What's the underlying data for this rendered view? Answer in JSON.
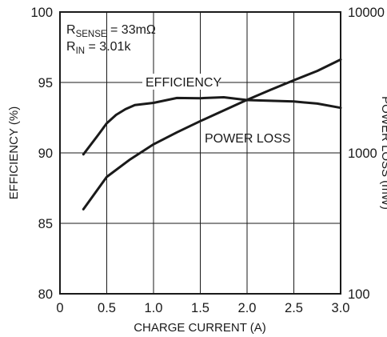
{
  "chart_data": {
    "type": "line",
    "title": "",
    "xlabel": "CHARGE CURRENT (A)",
    "ylabel": "EFFICIENCY (%)",
    "y2label": "POWER LOSS (mW)",
    "xlim": [
      0,
      3.0
    ],
    "ylim": [
      80,
      100
    ],
    "y2lim": [
      100,
      10000
    ],
    "y2scale": "log",
    "grid": true,
    "x_ticks": [
      "0",
      "0.5",
      "1.0",
      "1.5",
      "2.0",
      "2.5",
      "3.0"
    ],
    "y_ticks": [
      "80",
      "85",
      "90",
      "95",
      "100"
    ],
    "y2_ticks": [
      "100",
      "1000",
      "10000"
    ],
    "annotations": {
      "rsense_main": "R",
      "rsense_sub": "SENSE",
      "rsense_value": " = 33mΩ",
      "rin_main": "R",
      "rin_sub": "IN",
      "rin_value": " = 3.01k"
    },
    "series": [
      {
        "name": "EFFICIENCY",
        "axis": "left",
        "x": [
          0.25,
          0.4,
          0.5,
          0.6,
          0.7,
          0.8,
          1.0,
          1.25,
          1.5,
          1.75,
          2.0,
          2.25,
          2.5,
          2.75,
          3.0
        ],
        "y": [
          89.9,
          91.2,
          92.1,
          92.7,
          93.1,
          93.4,
          93.55,
          93.9,
          93.88,
          93.95,
          93.75,
          93.7,
          93.65,
          93.5,
          93.2
        ]
      },
      {
        "name": "POWER LOSS",
        "axis": "right",
        "x": [
          0.25,
          0.5,
          0.75,
          1.0,
          1.25,
          1.5,
          1.75,
          2.0,
          2.25,
          2.5,
          2.75,
          3.0
        ],
        "y": [
          398,
          675,
          900,
          1150,
          1400,
          1680,
          2000,
          2380,
          2800,
          3280,
          3820,
          4600
        ]
      }
    ]
  }
}
